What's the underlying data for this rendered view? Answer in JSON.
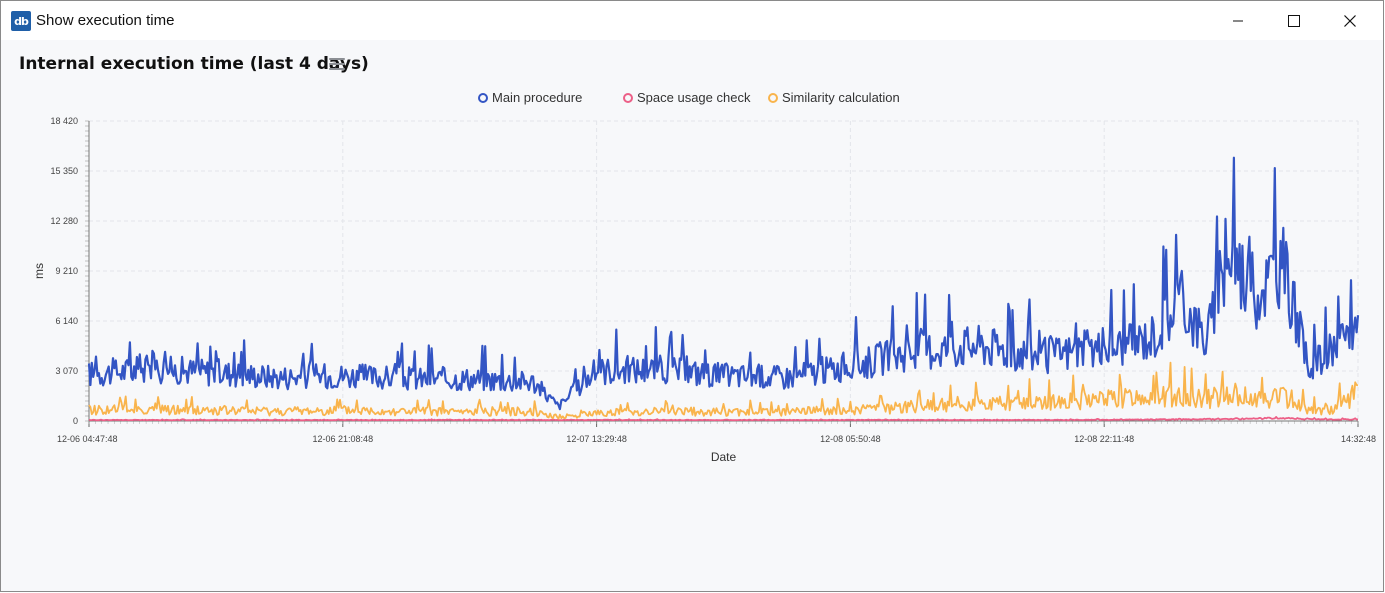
{
  "window": {
    "title": "Show execution time",
    "icon": "db-app-icon"
  },
  "chart_title": "Internal execution time (last 4 days)",
  "legend": [
    {
      "name": "Main procedure",
      "color": "#3355c4"
    },
    {
      "name": "Space usage check",
      "color": "#ec5f87"
    },
    {
      "name": "Similarity calculation",
      "color": "#f9b44c"
    }
  ],
  "chart_data": {
    "type": "line",
    "title": "Internal execution time (last 4 days)",
    "xlabel": "Date",
    "ylabel": "ms",
    "ylim": [
      0,
      18420
    ],
    "y_ticks": [
      "0",
      "3 070",
      "6 140",
      "9 210",
      "12 280",
      "15 350",
      "18 420"
    ],
    "x_ticks": [
      "12-06 04:47:48",
      "12-06 21:08:48",
      "12-07 13:29:48",
      "12-08 05:50:48",
      "12-08 22:11:48",
      "14:32:48"
    ],
    "grid": true,
    "legend_position": "top-center",
    "x": [
      0,
      0.05,
      0.1,
      0.15,
      0.2,
      0.25,
      0.3,
      0.35,
      0.37,
      0.4,
      0.45,
      0.5,
      0.55,
      0.6,
      0.65,
      0.7,
      0.75,
      0.8,
      0.82,
      0.84,
      0.86,
      0.88,
      0.9,
      0.92,
      0.94,
      0.96,
      0.98,
      1.0
    ],
    "series": [
      {
        "name": "Main procedure",
        "color": "#3355c4",
        "values": [
          2900,
          3200,
          3000,
          2700,
          2800,
          2600,
          2600,
          2400,
          900,
          3100,
          3200,
          2800,
          2700,
          3400,
          4300,
          4700,
          4000,
          4500,
          4700,
          5300,
          7500,
          5000,
          10200,
          7800,
          9800,
          3500,
          4000,
          6000
        ]
      },
      {
        "name": "Space usage check",
        "color": "#ec5f87",
        "values": [
          60,
          60,
          60,
          60,
          60,
          60,
          60,
          60,
          60,
          60,
          60,
          60,
          60,
          60,
          60,
          60,
          60,
          70,
          80,
          90,
          100,
          110,
          120,
          140,
          200,
          110,
          100,
          90
        ]
      },
      {
        "name": "Similarity calculation",
        "color": "#f9b44c",
        "values": [
          700,
          700,
          650,
          600,
          650,
          600,
          550,
          600,
          200,
          500,
          600,
          550,
          550,
          650,
          900,
          1100,
          1100,
          1300,
          1400,
          1500,
          1600,
          1300,
          1700,
          1300,
          1600,
          700,
          700,
          1800
        ]
      }
    ]
  }
}
